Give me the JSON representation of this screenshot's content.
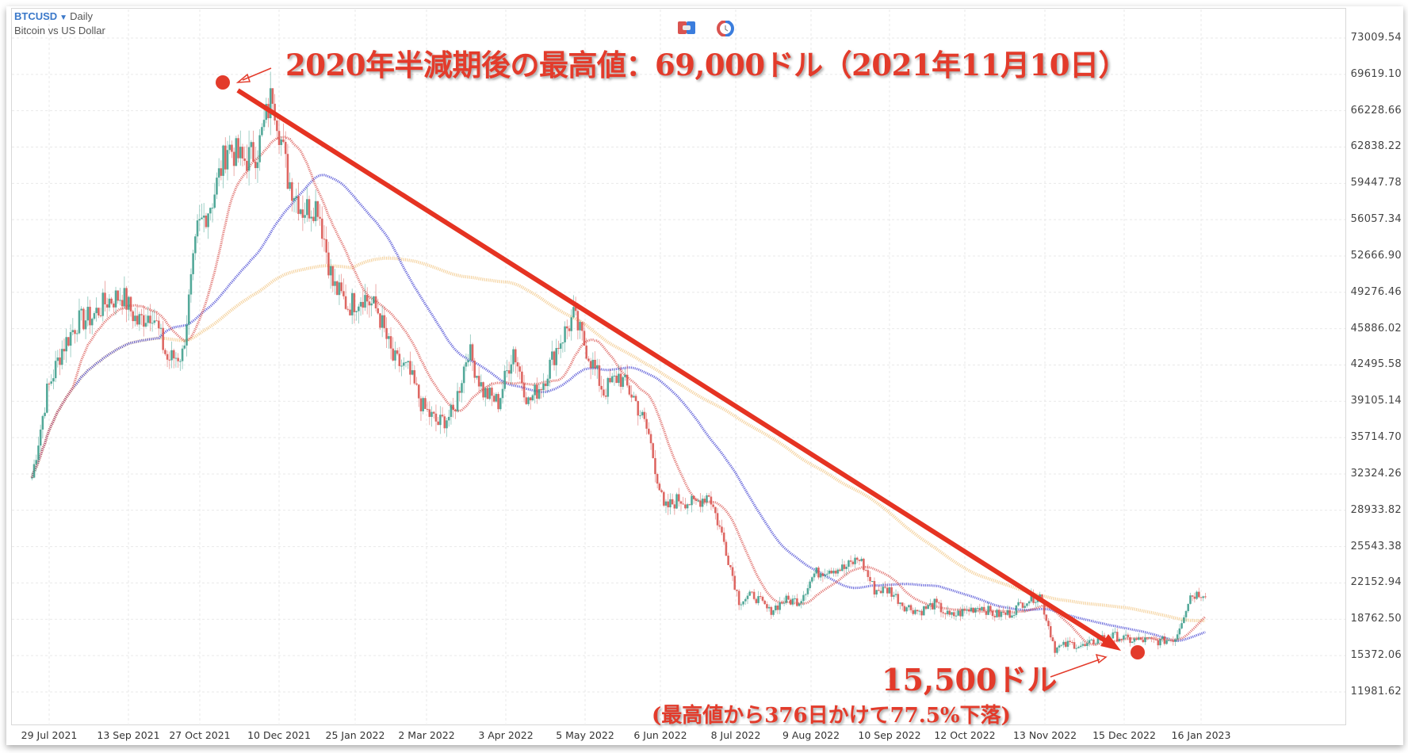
{
  "header": {
    "symbol": "BTCUSD",
    "interval": "Daily",
    "description": "Bitcoin vs US Dollar"
  },
  "toolbar": {
    "icons": [
      "compare-icon",
      "indicator-clock-icon"
    ]
  },
  "annotations": {
    "peak_text": "2020年半減期後の最高値：69,000ドル（2021年11月10日）",
    "low_text": "15,500ドル",
    "low_subtext": "(最高値から376日かけて77.5%下落)",
    "color": "#e33b2b"
  },
  "colors": {
    "up": "#3d9e8c",
    "down": "#d9534f",
    "ma_short": "#d9534f",
    "ma_mid": "#3b3bd0",
    "ma_long": "#f3c98b",
    "trend": "#e53322",
    "grid": "#e9e9e9",
    "symbol": "#3a78c9"
  },
  "chart_data": {
    "type": "candlestick",
    "title": "BTCUSD Daily - Bitcoin vs US Dollar",
    "xlabel": "",
    "ylabel": "",
    "ylim": [
      10000,
      75000
    ],
    "y_ticks": [
      "73009.54",
      "69619.10",
      "66228.66",
      "62838.22",
      "59447.78",
      "56057.34",
      "52666.90",
      "49276.46",
      "45886.02",
      "42495.58",
      "39105.14",
      "35714.70",
      "32324.26",
      "28933.82",
      "25543.38",
      "22152.94",
      "18762.50",
      "15372.06",
      "11981.62"
    ],
    "x_ticks": [
      "29 Jul 2021",
      "13 Sep 2021",
      "27 Oct 2021",
      "10 Dec 2021",
      "25 Jan 2022",
      "2 Mar 2022",
      "3 Apr 2022",
      "5 May 2022",
      "6 Jun 2022",
      "8 Jul 2022",
      "9 Aug 2022",
      "10 Sep 2022",
      "12 Oct 2022",
      "13 Nov 2022",
      "15 Dec 2022",
      "16 Jan 2023"
    ],
    "grid": true,
    "series": [
      {
        "name": "Price (weekly-sampled close)",
        "x": [
          "2021-07-21",
          "2021-07-28",
          "2021-08-04",
          "2021-08-11",
          "2021-08-18",
          "2021-08-25",
          "2021-09-01",
          "2021-09-08",
          "2021-09-15",
          "2021-09-22",
          "2021-09-29",
          "2021-10-06",
          "2021-10-13",
          "2021-10-20",
          "2021-10-27",
          "2021-11-03",
          "2021-11-10",
          "2021-11-17",
          "2021-11-24",
          "2021-12-01",
          "2021-12-08",
          "2021-12-15",
          "2021-12-22",
          "2021-12-29",
          "2022-01-05",
          "2022-01-12",
          "2022-01-19",
          "2022-01-26",
          "2022-02-02",
          "2022-02-09",
          "2022-02-16",
          "2022-02-23",
          "2022-03-02",
          "2022-03-09",
          "2022-03-16",
          "2022-03-23",
          "2022-03-30",
          "2022-04-06",
          "2022-04-13",
          "2022-04-20",
          "2022-04-27",
          "2022-05-04",
          "2022-05-11",
          "2022-05-18",
          "2022-05-25",
          "2022-06-01",
          "2022-06-08",
          "2022-06-15",
          "2022-06-22",
          "2022-06-29",
          "2022-07-06",
          "2022-07-13",
          "2022-07-20",
          "2022-07-27",
          "2022-08-03",
          "2022-08-10",
          "2022-08-17",
          "2022-08-24",
          "2022-08-31",
          "2022-09-07",
          "2022-09-14",
          "2022-09-21",
          "2022-09-28",
          "2022-10-05",
          "2022-10-12",
          "2022-10-19",
          "2022-10-26",
          "2022-11-02",
          "2022-11-09",
          "2022-11-16",
          "2022-11-23",
          "2022-11-30",
          "2022-12-07",
          "2022-12-14",
          "2022-12-21",
          "2022-12-28",
          "2023-01-04",
          "2023-01-11",
          "2023-01-18"
        ],
        "values": [
          32000,
          40000,
          44000,
          46500,
          47000,
          48500,
          49000,
          46500,
          47500,
          43000,
          43500,
          55000,
          58000,
          63000,
          61500,
          62500,
          68000,
          60000,
          57000,
          57500,
          50000,
          48000,
          49000,
          47500,
          43000,
          42000,
          38500,
          37000,
          38000,
          44000,
          40000,
          39000,
          44000,
          39000,
          41000,
          44500,
          47000,
          43500,
          40000,
          41500,
          39500,
          36000,
          29000,
          30000,
          29500,
          30500,
          26000,
          20500,
          21000,
          19500,
          20500,
          20500,
          23000,
          23500,
          23500,
          24500,
          21500,
          21500,
          20000,
          19500,
          20200,
          19000,
          19500,
          20000,
          19200,
          19300,
          20500,
          21000,
          16000,
          16500,
          16200,
          17000,
          17200,
          16800,
          16800,
          16700,
          17000,
          21000,
          21300
        ]
      },
      {
        "name": "MA short (red)",
        "values": []
      },
      {
        "name": "MA mid (blue)",
        "values": []
      },
      {
        "name": "MA long (orange)",
        "values": []
      }
    ],
    "annotations": [
      {
        "label": "2020年半減期後の最高値：69,000ドル（2021年11月10日）",
        "x": "2021-11-10",
        "y": 69000
      },
      {
        "label": "15,500ドル",
        "x": "2022-11-21",
        "y": 15500
      },
      {
        "label": "(最高値から376日かけて77.5%下落)"
      }
    ],
    "trendline": {
      "from": {
        "x": "2021-11-10",
        "y": 69000
      },
      "to": {
        "x": "2022-11-21",
        "y": 15500
      }
    }
  }
}
